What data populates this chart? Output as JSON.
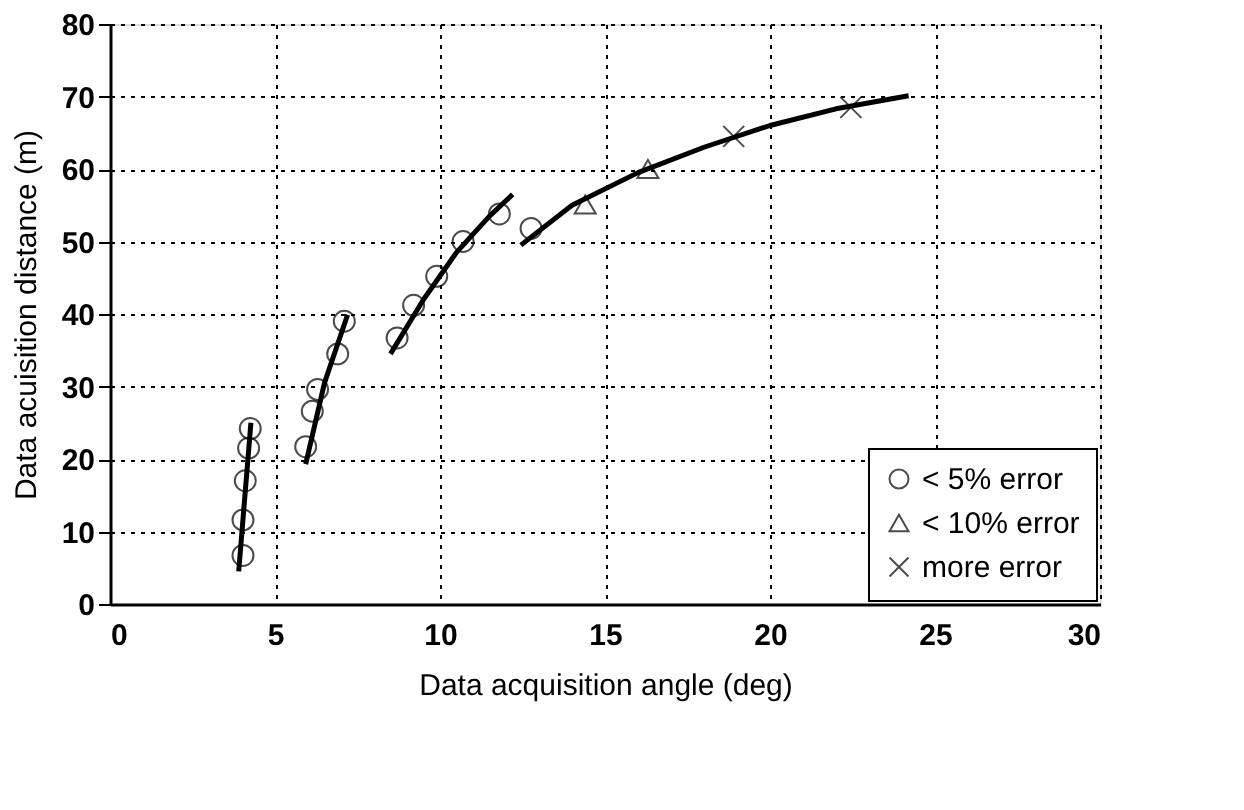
{
  "chart_data": {
    "type": "scatter",
    "xlabel": "Data acquisition angle (deg)",
    "ylabel": "Data acuisition distance (m)",
    "xlim": [
      0,
      30
    ],
    "xticks": [
      0,
      5,
      10,
      15,
      20,
      25,
      30
    ],
    "ylim": [
      0,
      80
    ],
    "yticks": [
      0,
      10,
      20,
      30,
      40,
      50,
      60,
      70,
      80
    ],
    "grid": true,
    "legend": "bottom right",
    "series": [
      {
        "name": "< 5% error",
        "color": "#000000",
        "marker": "circle",
        "x": [
          4.03,
          4.03,
          4.1,
          4.2,
          4.25,
          5.93,
          6.13,
          6.29,
          6.9,
          7.1,
          8.7,
          9.2,
          9.9,
          10.7,
          11.8,
          12.76
        ],
        "values": [
          6.7,
          11.6,
          17,
          21.5,
          24.2,
          21.7,
          26.6,
          29.6,
          34.5,
          39.0,
          36.7,
          41.2,
          45.2,
          50,
          53.8,
          51.8
        ]
      },
      {
        "name": "< 10% error",
        "color": "#000000",
        "marker": "triangle",
        "x": [
          14.4,
          16.3
        ],
        "values": [
          55.1,
          60
        ]
      },
      {
        "name": "more error",
        "color": "#000000",
        "marker": "cross",
        "x": [
          18.9,
          22.45
        ],
        "values": [
          64.5,
          68.5
        ]
      },
      {
        "type": "line",
        "color": "#000000",
        "line_style": "solid",
        "x": [
          3.9,
          4.27
        ],
        "values": [
          4.5,
          25
        ]
      },
      {
        "type": "line",
        "color": "#000000",
        "line_style": "solid",
        "x": [
          5.93,
          6.5,
          7.2
        ],
        "values": [
          19.3,
          30.5,
          39.9
        ]
      },
      {
        "type": "line",
        "color": "#000000",
        "line_style": "solid",
        "x": [
          8.5,
          9.5,
          10.5,
          11.5,
          12.2
        ],
        "values": [
          34.5,
          42,
          48.5,
          53.5,
          56.5
        ]
      },
      {
        "type": "line",
        "color": "#000000",
        "line_style": "solid",
        "x": [
          12.45,
          14,
          16,
          18,
          20,
          22,
          24.2
        ],
        "values": [
          49.5,
          55,
          59.5,
          63,
          66,
          68.3,
          70.1
        ]
      }
    ]
  }
}
